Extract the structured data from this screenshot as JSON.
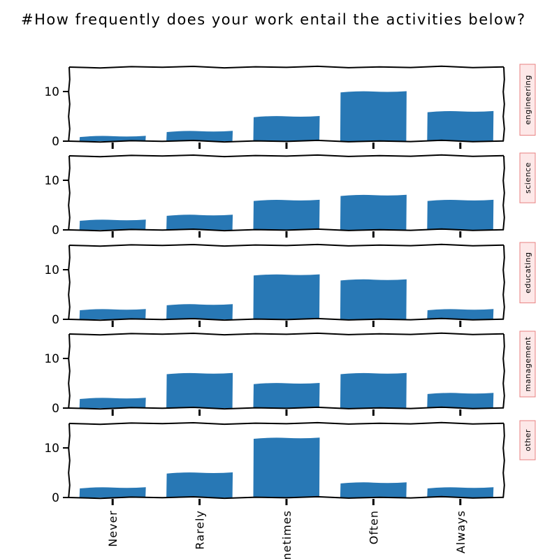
{
  "chart_data": {
    "type": "bar",
    "title": "#How frequently does your work entail the activities below?",
    "categories": [
      "Never",
      "Rarely",
      "Sometimes",
      "Often",
      "Always"
    ],
    "ylim": [
      0,
      15
    ],
    "yticks": [
      "0",
      "10"
    ],
    "series": [
      {
        "name": "engineering",
        "values": [
          1,
          2,
          5,
          10,
          6
        ]
      },
      {
        "name": "science",
        "values": [
          2,
          3,
          6,
          7,
          6
        ]
      },
      {
        "name": "educating",
        "values": [
          2,
          3,
          9,
          8,
          2
        ]
      },
      {
        "name": "management",
        "values": [
          2,
          7,
          5,
          7,
          3
        ]
      },
      {
        "name": "other",
        "values": [
          2,
          5,
          12,
          3,
          2
        ]
      }
    ],
    "bar_color": "#2878b5",
    "facet_label_background": "#fde8e8",
    "facet_label_border": "#e88080",
    "grid": false,
    "legend": "none"
  }
}
